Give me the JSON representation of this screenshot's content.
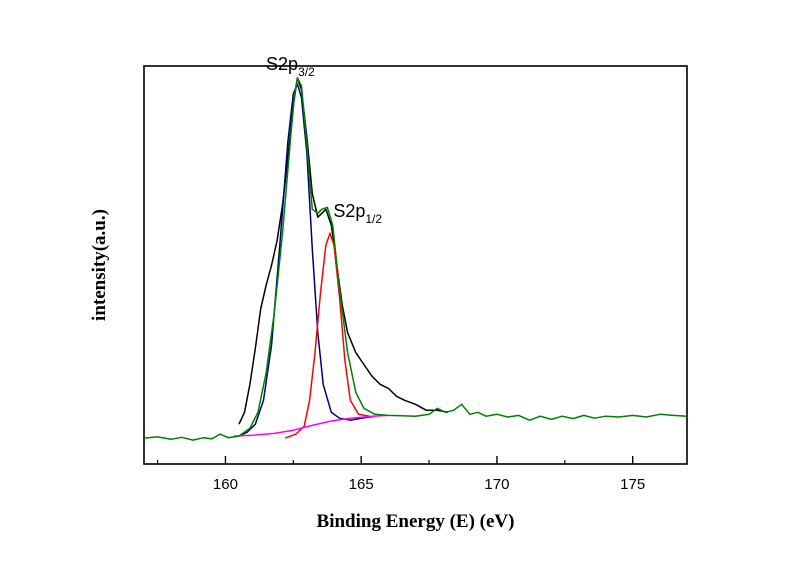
{
  "chart_data": {
    "type": "line",
    "title": "",
    "xlabel": "Binding Energy (E) (eV)",
    "ylabel": "intensity(a.u.)",
    "xlim": [
      157,
      177
    ],
    "ylim": [
      0,
      1
    ],
    "y_ticks_labeled": false,
    "grid": false,
    "legend": "none",
    "x_ticks": [
      160,
      165,
      170,
      175
    ],
    "x_tick_labels": [
      "160",
      "165",
      "170",
      "175"
    ],
    "annotations": [
      {
        "base": "S2p",
        "sub": "3/2",
        "x": 162.6,
        "y": 0.97
      },
      {
        "base": "S2p",
        "sub": "1/2",
        "x": 163.9,
        "y": 0.6
      }
    ],
    "series": [
      {
        "color": "#000000",
        "points": [
          [
            160.5,
            0.1
          ],
          [
            160.7,
            0.13
          ],
          [
            160.9,
            0.2
          ],
          [
            161.1,
            0.29
          ],
          [
            161.3,
            0.39
          ],
          [
            161.5,
            0.45
          ],
          [
            161.7,
            0.5
          ],
          [
            161.9,
            0.56
          ],
          [
            162.1,
            0.65
          ],
          [
            162.3,
            0.77
          ],
          [
            162.5,
            0.9
          ],
          [
            162.65,
            0.97
          ],
          [
            162.8,
            0.94
          ],
          [
            163.0,
            0.82
          ],
          [
            163.2,
            0.68
          ],
          [
            163.4,
            0.62
          ],
          [
            163.55,
            0.63
          ],
          [
            163.7,
            0.64
          ],
          [
            163.9,
            0.6
          ],
          [
            164.1,
            0.5
          ],
          [
            164.3,
            0.4
          ],
          [
            164.5,
            0.33
          ],
          [
            164.8,
            0.28
          ],
          [
            165.1,
            0.25
          ],
          [
            165.4,
            0.22
          ],
          [
            165.7,
            0.2
          ],
          [
            166.0,
            0.19
          ],
          [
            166.3,
            0.17
          ],
          [
            166.6,
            0.16
          ],
          [
            167.0,
            0.15
          ],
          [
            167.4,
            0.135
          ],
          [
            167.8,
            0.135
          ],
          [
            168.2,
            0.13
          ]
        ]
      },
      {
        "color": "#00007a",
        "points": [
          [
            160.5,
            0.07
          ],
          [
            160.8,
            0.08
          ],
          [
            161.1,
            0.1
          ],
          [
            161.4,
            0.16
          ],
          [
            161.7,
            0.3
          ],
          [
            162.0,
            0.55
          ],
          [
            162.3,
            0.81
          ],
          [
            162.5,
            0.93
          ],
          [
            162.65,
            0.955
          ],
          [
            162.8,
            0.92
          ],
          [
            163.0,
            0.78
          ],
          [
            163.2,
            0.54
          ],
          [
            163.4,
            0.33
          ],
          [
            163.6,
            0.2
          ],
          [
            163.9,
            0.13
          ],
          [
            164.2,
            0.115
          ],
          [
            164.6,
            0.11
          ],
          [
            165.0,
            0.115
          ],
          [
            165.5,
            0.12
          ]
        ]
      },
      {
        "color": "#ff0000",
        "points": [
          [
            162.2,
            0.065
          ],
          [
            162.6,
            0.075
          ],
          [
            162.9,
            0.095
          ],
          [
            163.1,
            0.16
          ],
          [
            163.3,
            0.28
          ],
          [
            163.5,
            0.43
          ],
          [
            163.7,
            0.55
          ],
          [
            163.85,
            0.58
          ],
          [
            164.0,
            0.55
          ],
          [
            164.2,
            0.42
          ],
          [
            164.4,
            0.26
          ],
          [
            164.6,
            0.16
          ],
          [
            164.9,
            0.125
          ],
          [
            165.3,
            0.12
          ]
        ]
      },
      {
        "color": "#ff00ff",
        "points": [
          [
            160.3,
            0.07
          ],
          [
            161.0,
            0.072
          ],
          [
            161.8,
            0.077
          ],
          [
            162.5,
            0.085
          ],
          [
            163.2,
            0.097
          ],
          [
            163.9,
            0.108
          ],
          [
            164.6,
            0.115
          ],
          [
            165.4,
            0.12
          ],
          [
            166.0,
            0.122
          ]
        ]
      },
      {
        "color": "#008000",
        "points": [
          [
            157.0,
            0.065
          ],
          [
            157.5,
            0.068
          ],
          [
            158.0,
            0.062
          ],
          [
            158.4,
            0.067
          ],
          [
            158.8,
            0.06
          ],
          [
            159.2,
            0.066
          ],
          [
            159.5,
            0.063
          ],
          [
            159.8,
            0.075
          ],
          [
            160.1,
            0.066
          ],
          [
            160.5,
            0.07
          ],
          [
            160.9,
            0.09
          ],
          [
            161.2,
            0.13
          ],
          [
            161.5,
            0.23
          ],
          [
            161.8,
            0.38
          ],
          [
            162.1,
            0.58
          ],
          [
            162.4,
            0.82
          ],
          [
            162.55,
            0.93
          ],
          [
            162.65,
            0.97
          ],
          [
            162.8,
            0.95
          ],
          [
            163.0,
            0.8
          ],
          [
            163.2,
            0.64
          ],
          [
            163.4,
            0.63
          ],
          [
            163.55,
            0.64
          ],
          [
            163.75,
            0.645
          ],
          [
            163.95,
            0.6
          ],
          [
            164.2,
            0.44
          ],
          [
            164.5,
            0.28
          ],
          [
            164.8,
            0.18
          ],
          [
            165.1,
            0.14
          ],
          [
            165.5,
            0.125
          ],
          [
            166.0,
            0.122
          ],
          [
            166.5,
            0.121
          ],
          [
            167.0,
            0.12
          ],
          [
            167.5,
            0.125
          ],
          [
            167.8,
            0.14
          ],
          [
            168.1,
            0.13
          ],
          [
            168.4,
            0.135
          ],
          [
            168.7,
            0.15
          ],
          [
            169.0,
            0.125
          ],
          [
            169.3,
            0.13
          ],
          [
            169.6,
            0.12
          ],
          [
            170.0,
            0.125
          ],
          [
            170.4,
            0.118
          ],
          [
            170.8,
            0.122
          ],
          [
            171.2,
            0.11
          ],
          [
            171.6,
            0.12
          ],
          [
            172.0,
            0.112
          ],
          [
            172.4,
            0.12
          ],
          [
            172.8,
            0.114
          ],
          [
            173.2,
            0.122
          ],
          [
            173.6,
            0.115
          ],
          [
            174.0,
            0.12
          ],
          [
            174.5,
            0.118
          ],
          [
            175.0,
            0.122
          ],
          [
            175.5,
            0.118
          ],
          [
            176.0,
            0.125
          ],
          [
            176.5,
            0.122
          ],
          [
            177.0,
            0.12
          ]
        ]
      }
    ]
  }
}
